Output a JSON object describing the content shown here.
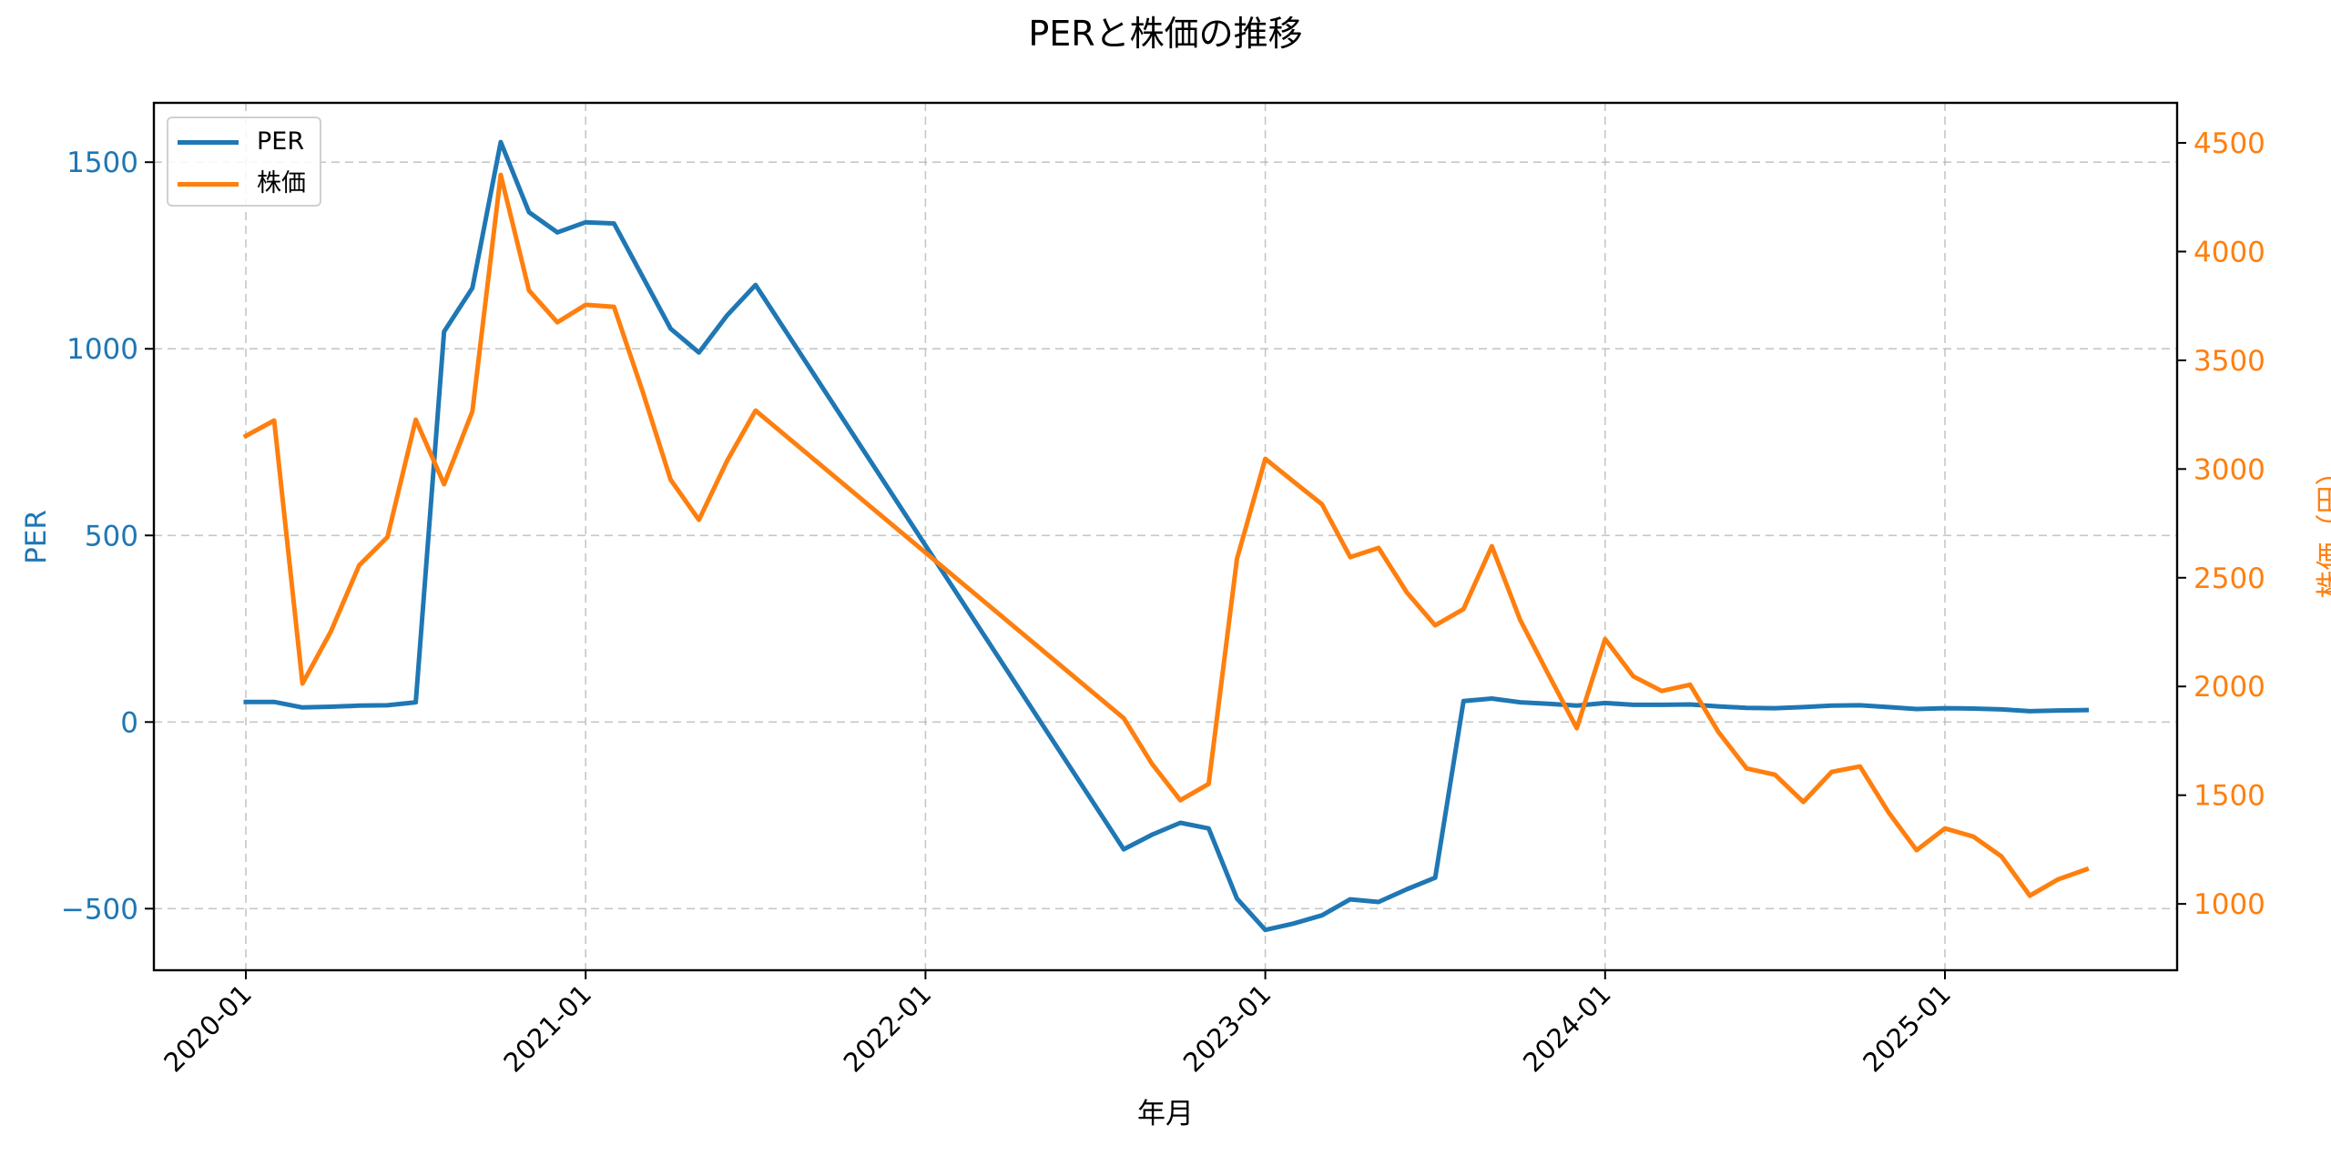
{
  "title": "PERと株価の推移",
  "x_axis": {
    "label": "年月",
    "ticks": [
      "2020-01",
      "2021-01",
      "2022-01",
      "2023-01",
      "2024-01",
      "2025-01"
    ]
  },
  "y_axis_left": {
    "label": "PER",
    "color": "#1f77b4",
    "ticks": [
      "−500",
      "0",
      "500",
      "1000",
      "1500"
    ]
  },
  "y_axis_right": {
    "label": "株価（円）",
    "color": "#ff7f0e",
    "ticks": [
      "1000",
      "1500",
      "2000",
      "2500",
      "3000",
      "3500",
      "4000",
      "4500"
    ]
  },
  "legend": {
    "items": [
      {
        "label": "PER",
        "color": "#1f77b4"
      },
      {
        "label": "株価",
        "color": "#ff7f0e"
      }
    ]
  },
  "chart_data": {
    "type": "line",
    "title": "PERと株価の推移",
    "xlabel": "年月",
    "ylabel": "PER",
    "ylabel_right": "株価（円）",
    "grid": true,
    "legend_position": "upper left",
    "xlim": [
      "2019-10",
      "2025-09"
    ],
    "ylim": [
      -665,
      1659
    ],
    "ylim_right": [
      695,
      4684
    ],
    "x": [
      "2020-01",
      "2020-02",
      "2020-03",
      "2020-04",
      "2020-05",
      "2020-06",
      "2020-07",
      "2020-08",
      "2020-09",
      "2020-10",
      "2020-11",
      "2020-12",
      "2021-01",
      "2021-02",
      "2021-03",
      "2021-04",
      "2021-05",
      "2021-06",
      "2021-07",
      "2022-08",
      "2022-09",
      "2022-10",
      "2022-11",
      "2022-12",
      "2023-01",
      "2023-02",
      "2023-03",
      "2023-04",
      "2023-05",
      "2023-06",
      "2023-07",
      "2023-08",
      "2023-09",
      "2023-10",
      "2023-11",
      "2023-12",
      "2024-01",
      "2024-02",
      "2024-03",
      "2024-04",
      "2024-05",
      "2024-06",
      "2024-07",
      "2024-08",
      "2024-09",
      "2024-10",
      "2024-11",
      "2024-12",
      "2025-01",
      "2025-02",
      "2025-03",
      "2025-04",
      "2025-05",
      "2025-06"
    ],
    "series": [
      {
        "name": "PER",
        "axis": "left",
        "color": "#1f77b4",
        "values": [
          54,
          54,
          39,
          41,
          44,
          45,
          53,
          1046,
          1163,
          1554,
          1366,
          1312,
          1339,
          1336,
          1195,
          1054,
          990,
          1090,
          1171,
          -341,
          -302,
          -270,
          -285,
          -473,
          -557,
          -540,
          -518,
          -475,
          -482,
          -448,
          -417,
          56,
          63,
          53,
          49,
          44,
          51,
          46,
          46,
          47,
          42,
          38,
          37,
          40,
          44,
          45,
          40,
          35,
          37,
          36,
          34,
          29,
          31,
          32
        ]
      },
      {
        "name": "株価",
        "axis": "right",
        "color": "#ff7f0e",
        "values": [
          3152,
          3223,
          2013,
          2252,
          2557,
          2687,
          3227,
          2930,
          3265,
          4353,
          3821,
          3675,
          3755,
          3746,
          3361,
          2951,
          2766,
          3039,
          3269,
          1854,
          1644,
          1477,
          1552,
          2587,
          3047,
          2942,
          2838,
          2595,
          2637,
          2432,
          2281,
          2356,
          2645,
          2306,
          2055,
          1808,
          2218,
          2046,
          1979,
          2008,
          1791,
          1623,
          1594,
          1469,
          1607,
          1632,
          1423,
          1247,
          1347,
          1310,
          1218,
          1038,
          1113,
          1159
        ]
      }
    ]
  }
}
